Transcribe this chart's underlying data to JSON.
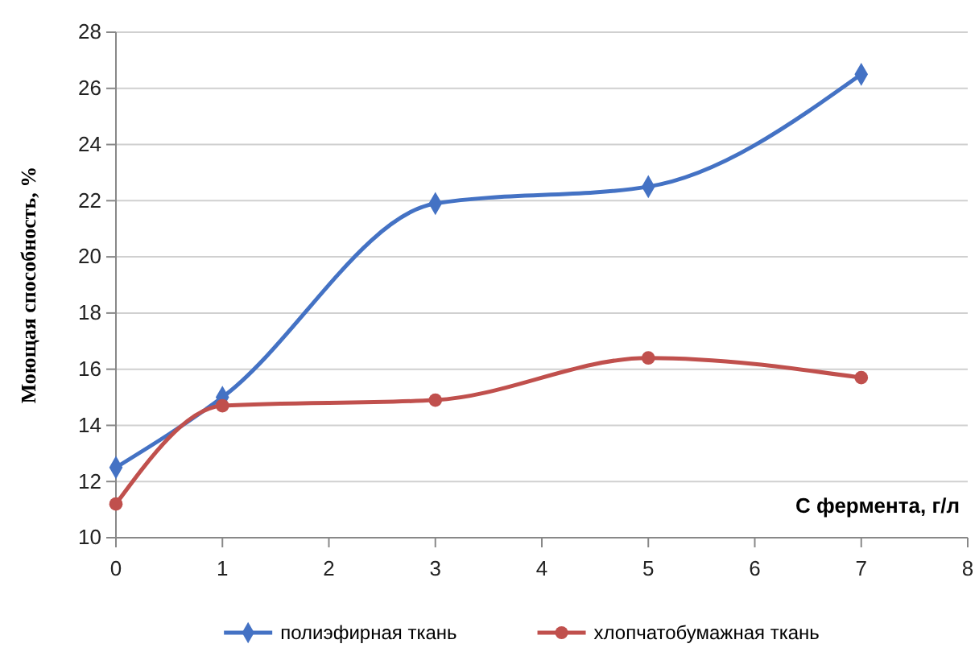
{
  "chart_data": {
    "type": "line",
    "xlabel": "С фермента, г/л",
    "ylabel": "Моющая способность, %",
    "xlim": [
      0,
      8
    ],
    "xticks": [
      0,
      1,
      2,
      3,
      4,
      5,
      6,
      7,
      8
    ],
    "ylim": [
      10,
      28
    ],
    "yticks": [
      10,
      12,
      14,
      16,
      18,
      20,
      22,
      24,
      26,
      28
    ],
    "grid": "y",
    "legend": "bottom",
    "line_style": "solid",
    "series": [
      {
        "name": "полиэфирная ткань",
        "color": "#4472c4",
        "marker": "diamond",
        "x": [
          0,
          1,
          3,
          5,
          7
        ],
        "values": [
          12.5,
          15,
          21.9,
          22.5,
          26.5
        ]
      },
      {
        "name": "хлопчатобумажная ткань",
        "color": "#c0504d",
        "marker": "circle",
        "x": [
          0,
          1,
          3,
          5,
          7
        ],
        "values": [
          11.2,
          14.7,
          14.9,
          16.4,
          15.7
        ]
      }
    ]
  }
}
